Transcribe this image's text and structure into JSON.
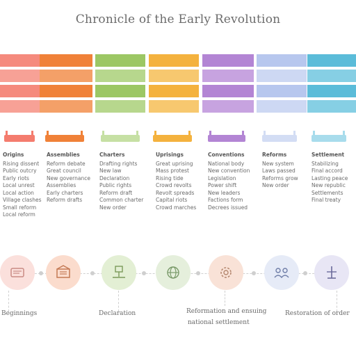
{
  "title": "Chronicle of the Early Revolution",
  "colors": {
    "col1": "#f47c6e",
    "col2": "#f08138",
    "col3": "#9cc764",
    "col4": "#f4b23e",
    "col5": "#b385d4",
    "col6": "#b7c7ee",
    "col7": "#5bbcd9"
  },
  "columns": [
    {
      "title": "Origins",
      "lines": [
        "Rising dissent",
        "Public outcry",
        "Early riots",
        "Local unrest",
        "Local action",
        "Village clashes",
        "Small reform",
        "Local reform"
      ]
    },
    {
      "title": "Assemblies",
      "lines": [
        "Reform debate",
        "Great council",
        "New governance",
        "Assemblies",
        "Early charters",
        "Reform drafts"
      ]
    },
    {
      "title": "Charters",
      "lines": [
        "Drafting rights",
        "New law",
        "Declaration",
        "Public rights",
        "Reform draft",
        "Common charter",
        "New order"
      ]
    },
    {
      "title": "Uprisings",
      "lines": [
        "Great uprising",
        "Mass protest",
        "Rising tide",
        "Crowd revolts",
        "Revolt spreads",
        "Capital riots",
        "Crowd marches"
      ]
    },
    {
      "title": "Conventions",
      "lines": [
        "National body",
        "New convention",
        "Legislation",
        "Power shift",
        "New leaders",
        "Factions form",
        "Decrees issued"
      ]
    },
    {
      "title": "Reforms",
      "lines": [
        "New system",
        "Laws passed",
        "Reforms grow",
        "New order"
      ]
    },
    {
      "title": "Settlement",
      "lines": [
        "Stabilizing",
        "Final accord",
        "Lasting peace",
        "New republic",
        "Settlements",
        "Final treaty"
      ]
    }
  ],
  "bottom": {
    "left": "Beginnings",
    "mid1": "Declaration",
    "center": "Reformation and ensuing",
    "center2": "national settlement",
    "right": "Restoration of order"
  },
  "icons": [
    "scroll-icon",
    "document-icon",
    "scales-icon",
    "globe-icon",
    "gear-icon",
    "crowd-icon",
    "flag-icon"
  ]
}
